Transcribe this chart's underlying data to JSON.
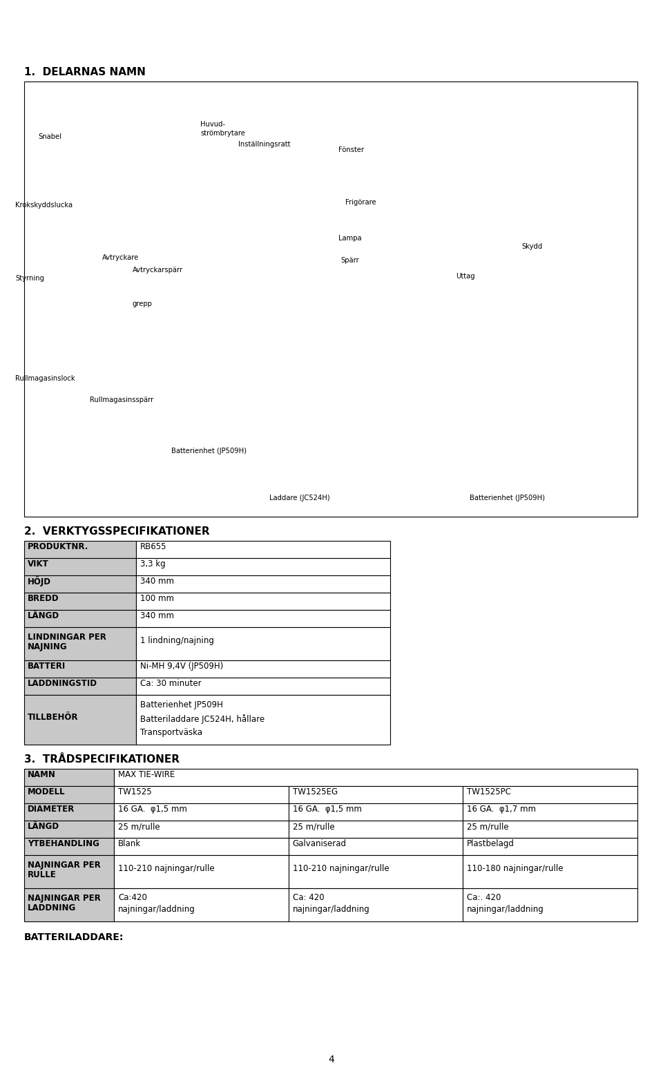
{
  "bg_color": "#ffffff",
  "page_number": "4",
  "section1_title": "1.  DELARNAS NAMN",
  "section2_title": "2.  VERKTYGSSPECIFIKATIONER",
  "section3_title": "3.  TRÅDSPECIFIKATIONER",
  "footer_label": "BATTERILADDARE:",
  "table2_rows": [
    [
      "PRODUKTNR.",
      "RB655"
    ],
    [
      "VIKT",
      "3,3 kg"
    ],
    [
      "HÖJD",
      "340 mm"
    ],
    [
      "BREDD",
      "100 mm"
    ],
    [
      "LÄNGD",
      "340 mm"
    ],
    [
      "LINDNINGAR PER\nNAJNING",
      "1 lindning/najning"
    ],
    [
      "BATTERI",
      "Ni-MH 9,4V (JP509H)"
    ],
    [
      "LADDNINGSTID",
      "Ca: 30 minuter"
    ],
    [
      "TILLBEHÖR",
      "Batterienhet JP509H\nBatteriladdare JC524H, hållare\nTransportväska"
    ]
  ],
  "table3_rows": [
    [
      "NAMN",
      "MAX TIE-WIRE",
      "",
      ""
    ],
    [
      "MODELL",
      "TW1525",
      "TW1525EG",
      "TW1525PC"
    ],
    [
      "DIAMETER",
      "16 GA.  φ1,5 mm",
      "16 GA.  φ1,5 mm",
      "16 GA.  φ1,7 mm"
    ],
    [
      "LÄNGD",
      "25 m/rulle",
      "25 m/rulle",
      "25 m/rulle"
    ],
    [
      "YTBEHANDLING",
      "Blank",
      "Galvaniserad",
      "Plastbelagd"
    ],
    [
      "NAJNINGAR PER\nRULLE",
      "110-210 najningar/rulle",
      "110-210 najningar/rulle",
      "110-180 najningar/rulle"
    ],
    [
      "NAJNINGAR PER\nLADDNING",
      "Ca:420\nnajningar/laddning",
      "Ca: 420\nnajningar/laddning",
      "Ca:. 420\nnajningar/laddning"
    ]
  ],
  "header_gray": "#c8c8c8",
  "diagram_labels": [
    [
      55,
      193,
      "Snabel"
    ],
    [
      55,
      207,
      ""
    ],
    [
      290,
      175,
      "Huvud-"
    ],
    [
      290,
      188,
      "strömbrytare"
    ],
    [
      345,
      204,
      "Inställningsratt"
    ],
    [
      22,
      292,
      "Krokskyddslucka"
    ],
    [
      490,
      212,
      "Fönster"
    ],
    [
      22,
      398,
      "Styrning"
    ],
    [
      148,
      368,
      "Avtryckare"
    ],
    [
      192,
      386,
      "Avtryckarspärr"
    ],
    [
      192,
      435,
      "grepp"
    ],
    [
      500,
      288,
      "Frigörare"
    ],
    [
      490,
      340,
      "Lampa"
    ],
    [
      493,
      372,
      "Spärr"
    ],
    [
      660,
      395,
      "Uttag"
    ],
    [
      755,
      352,
      "Skydd"
    ],
    [
      22,
      543,
      "Rullmagasinslock"
    ],
    [
      130,
      574,
      "Rullmagasinsspärr"
    ],
    [
      248,
      648,
      "Batterienhet (JP509H)"
    ],
    [
      390,
      716,
      "Laddare (JC524H)"
    ],
    [
      680,
      716,
      "Batterienhet (JP509H)"
    ]
  ]
}
